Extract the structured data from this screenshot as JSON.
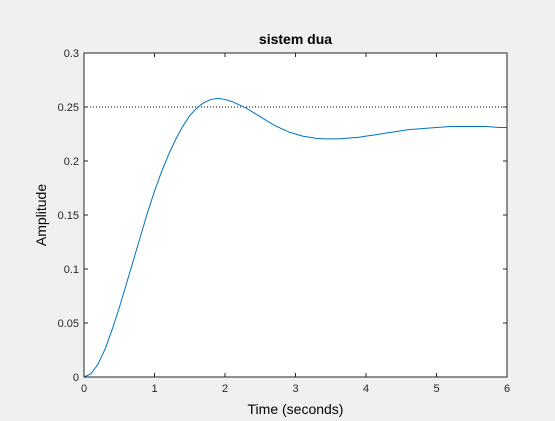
{
  "chart_data": {
    "type": "line",
    "title": "sistem dua",
    "xlabel": "Time (seconds)",
    "ylabel": "Amplitude",
    "xlim": [
      0,
      6
    ],
    "ylim": [
      0,
      0.3
    ],
    "xticks": [
      "0",
      "1",
      "2",
      "3",
      "4",
      "5",
      "6"
    ],
    "yticks": [
      "0",
      "0.05",
      "0.1",
      "0.15",
      "0.2",
      "0.25",
      "0.3"
    ],
    "grid": false,
    "legend": "none",
    "reference_line": {
      "y": 0.25,
      "style": "dotted",
      "color": "#000000"
    },
    "series": [
      {
        "color": "#0072bd",
        "x": [
          0,
          0.1,
          0.2,
          0.3,
          0.4,
          0.5,
          0.6,
          0.7,
          0.8,
          0.9,
          1.0,
          1.1,
          1.2,
          1.3,
          1.4,
          1.5,
          1.6,
          1.7,
          1.8,
          1.9,
          2.0,
          2.1,
          2.2,
          2.3,
          2.4,
          2.5,
          2.6,
          2.7,
          2.8,
          2.9,
          3.0,
          3.1,
          3.2,
          3.3,
          3.4,
          3.5,
          3.6,
          3.7,
          3.8,
          3.9,
          4.0,
          4.1,
          4.2,
          4.3,
          4.4,
          4.5,
          4.6,
          4.7,
          4.8,
          4.9,
          5.0,
          5.1,
          5.2,
          5.3,
          5.4,
          5.5,
          5.6,
          5.7,
          5.8,
          5.9,
          6.0
        ],
        "y": [
          0,
          0.003,
          0.012,
          0.026,
          0.044,
          0.064,
          0.086,
          0.108,
          0.13,
          0.152,
          0.172,
          0.19,
          0.206,
          0.22,
          0.232,
          0.242,
          0.249,
          0.254,
          0.257,
          0.258,
          0.257,
          0.255,
          0.252,
          0.249,
          0.245,
          0.241,
          0.237,
          0.233,
          0.23,
          0.227,
          0.225,
          0.223,
          0.222,
          0.221,
          0.2205,
          0.2205,
          0.2205,
          0.221,
          0.2215,
          0.222,
          0.223,
          0.224,
          0.225,
          0.226,
          0.227,
          0.228,
          0.229,
          0.2295,
          0.23,
          0.2305,
          0.231,
          0.2315,
          0.232,
          0.232,
          0.232,
          0.232,
          0.232,
          0.232,
          0.2315,
          0.231,
          0.231
        ]
      }
    ]
  }
}
